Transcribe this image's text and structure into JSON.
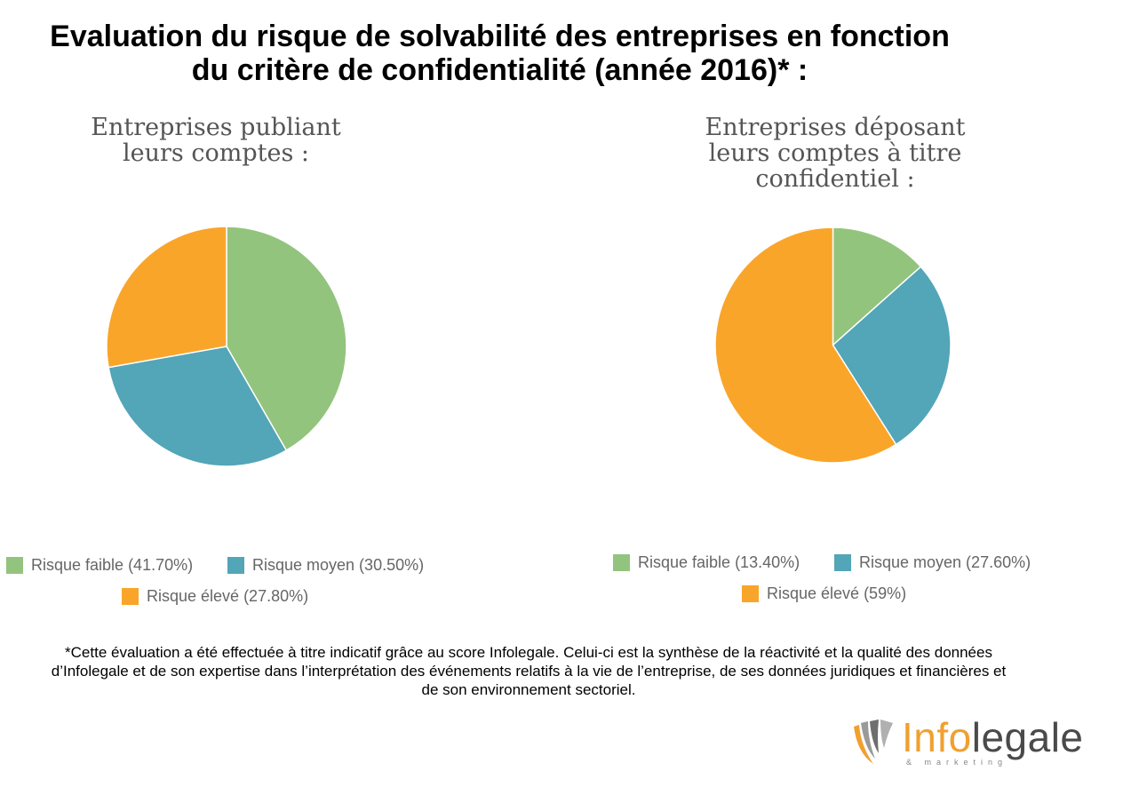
{
  "title": "Evaluation du risque de solvabilité des entreprises en fonction du critère de confidentialité (année 2016)* :",
  "chart_data": [
    {
      "type": "pie",
      "title": "Entreprises publiant leurs comptes :",
      "categories": [
        "Risque faible",
        "Risque moyen",
        "Risque élevé"
      ],
      "values": [
        41.7,
        30.5,
        27.8
      ],
      "colors": [
        "#93c47d",
        "#53a5b8",
        "#f9a52a"
      ],
      "legend": [
        {
          "label": "Risque faible (41.70%)",
          "color": "#93c47d"
        },
        {
          "label": "Risque moyen (30.50%)",
          "color": "#53a5b8"
        },
        {
          "label": "Risque élevé (27.80%)",
          "color": "#f9a52a"
        }
      ],
      "legend_position": "bottom"
    },
    {
      "type": "pie",
      "title": "Entreprises déposant leurs comptes à titre confidentiel :",
      "categories": [
        "Risque faible",
        "Risque moyen",
        "Risque élevé"
      ],
      "values": [
        13.4,
        27.6,
        59
      ],
      "colors": [
        "#93c47d",
        "#53a5b8",
        "#f9a52a"
      ],
      "legend": [
        {
          "label": "Risque faible (13.40%)",
          "color": "#93c47d"
        },
        {
          "label": "Risque moyen (27.60%)",
          "color": "#53a5b8"
        },
        {
          "label": "Risque élevé (59%)",
          "color": "#f9a52a"
        }
      ],
      "legend_position": "bottom"
    }
  ],
  "footnote": "*Cette évaluation a été effectuée à titre indicatif grâce au score Infolegale. Celui-ci est la synthèse de la réactivité et la qualité des données d’Infolegale et de son expertise dans l’interprétation des événements relatifs à la vie de l’entreprise, de ses données juridiques et financières et de son environnement sectoriel.",
  "logo": {
    "text_part1": "Info",
    "text_part2": "legale",
    "tagline": "& marketing",
    "icon": "infolegale-logo-icon"
  }
}
